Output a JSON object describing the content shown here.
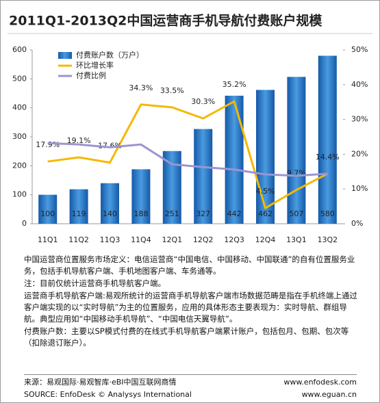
{
  "chart_data": {
    "type": "bar",
    "title": "2011Q1-2013Q2中国运营商手机导航付费账户规模",
    "categories": [
      "11Q1",
      "11Q2",
      "11Q3",
      "11Q4",
      "12Q1",
      "12Q2",
      "12Q3",
      "12Q4",
      "13Q1",
      "13Q2"
    ],
    "series": [
      {
        "name": "付费账户数（万户）",
        "type": "bar",
        "color": "#1f6fc0",
        "values": [
          100,
          119,
          140,
          188,
          251,
          327,
          442,
          462,
          507,
          580
        ]
      },
      {
        "name": "环比增长率",
        "type": "line",
        "axis": "y2",
        "color": "#f5b800",
        "values": [
          17.9,
          19.1,
          17.6,
          34.3,
          33.5,
          30.3,
          35.2,
          4.5,
          9.7,
          14.4
        ],
        "value_labels": [
          "17.9%",
          "19.1%",
          "17.6%",
          "34.3%",
          "33.5%",
          "30.3%",
          "35.2%",
          "4.5%",
          "9.7%",
          "14.4%"
        ]
      },
      {
        "name": "付费比例",
        "type": "line",
        "axis": "y2",
        "color": "#9b95d0",
        "values": [
          23.2,
          22.8,
          22.0,
          22.8,
          17.1,
          16.3,
          15.6,
          14.2,
          13.8,
          14.4
        ]
      }
    ],
    "ylim": [
      0,
      600
    ],
    "yticks": [
      0,
      100,
      200,
      300,
      400,
      500,
      600
    ],
    "y2lim": [
      0,
      50
    ],
    "y2ticks": [
      {
        "value": 0,
        "label": "0%"
      },
      {
        "value": 10,
        "label": "10%"
      },
      {
        "value": 20,
        "label": "20%"
      },
      {
        "value": 30,
        "label": "30%"
      },
      {
        "value": 40,
        "label": "40%"
      },
      {
        "value": 50,
        "label": "50%"
      }
    ],
    "grid": false,
    "legend": "upper left"
  },
  "notes": [
    "中国运营商位置服务市场定义：电信运营商“中国电信、中国移动、中国联通”的自有位置服务业务，包括手机导航客户端、手机地图客户端、车务通等。",
    "注：目前仅统计运营商手机导航客户端。",
    "运营商手机导航客户端:易观所统计的运营商手机导航客户端市场数据范畴是指在手机终端上通过客户端实现的以“实时导航”为主的位置服务，应用的具体形态主要表现为：实时导航、群组导航。典型应用如“中国移动手机导航”、“中国电信天翼导航”。",
    "付费账户数：主要以SP模式付费的在线式手机导航客户端累计账户，包括包月、包期、包次等（扣除退订账户）。"
  ],
  "source": {
    "left": [
      "来源：易观国际·易观智库·eBI中国互联网商情",
      "SOURCE: EnfoDesk © Analysys International"
    ],
    "right": [
      "www.enfodesk.com",
      "www.eguan.cn"
    ]
  }
}
